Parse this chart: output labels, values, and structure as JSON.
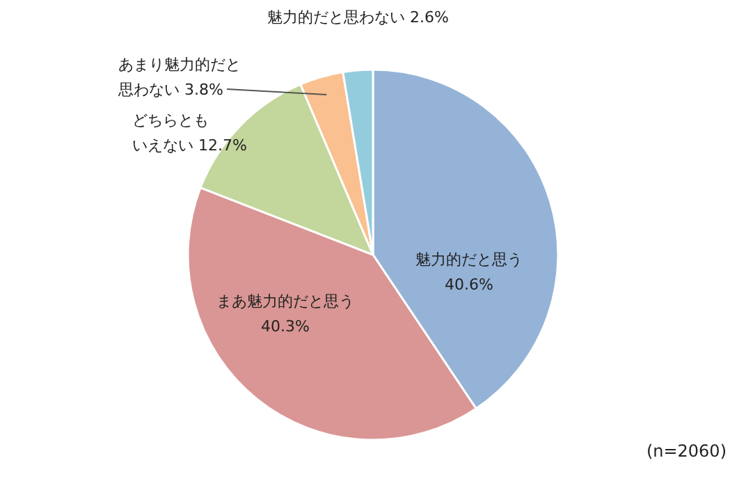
{
  "chart_data": {
    "type": "pie",
    "categories": [
      "魅力的だと思う",
      "まあ魅力的だと思う",
      "どちらともいえない",
      "あまり魅力的だと思わない",
      "魅力的だと思わない"
    ],
    "values": [
      40.6,
      40.3,
      12.7,
      3.8,
      2.6
    ],
    "value_labels": [
      "40.6%",
      "40.3%",
      "12.7%",
      "3.8%",
      "2.6%"
    ],
    "colors": [
      "#95b3d7",
      "#d99694",
      "#c3d69b",
      "#fac090",
      "#93cddd"
    ],
    "annotations": [
      "(n=2060)"
    ],
    "legend": false
  }
}
